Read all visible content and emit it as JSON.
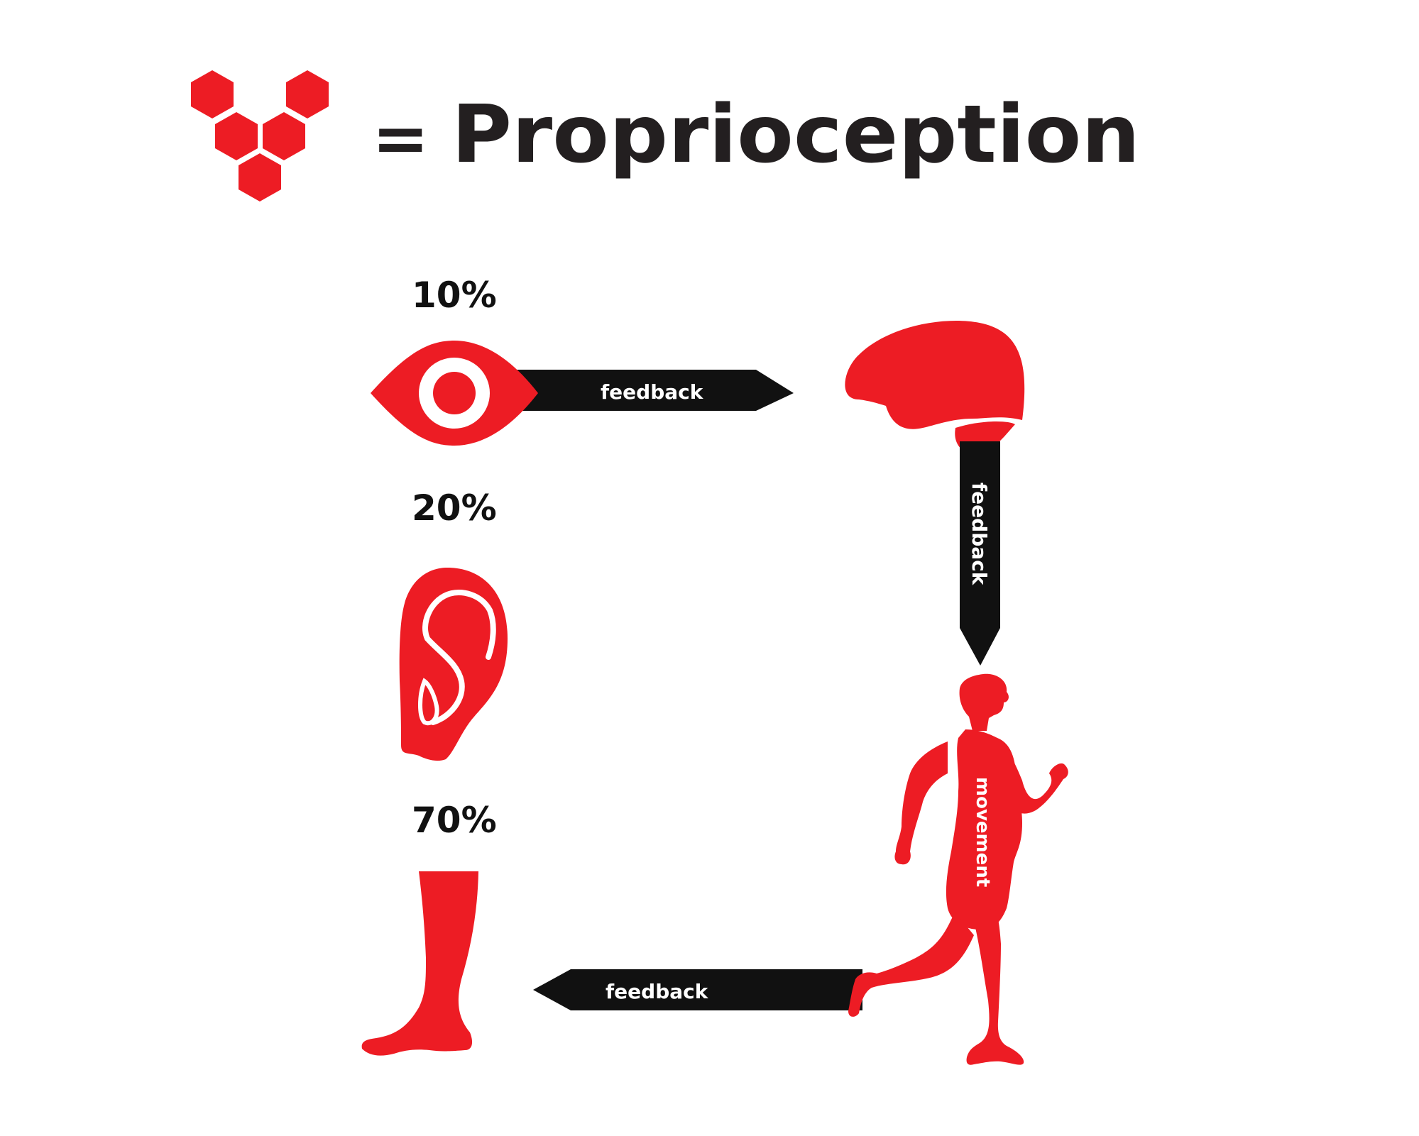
{
  "title": {
    "equals": "=",
    "text": "Proprioception"
  },
  "senses": [
    {
      "percent": "10%",
      "icon": "eye-icon"
    },
    {
      "percent": "20%",
      "icon": "ear-icon"
    },
    {
      "percent": "70%",
      "icon": "leg-icon"
    }
  ],
  "arrows": {
    "eye_to_brain": "feedback",
    "brain_to_body": "feedback",
    "body_to_leg": "feedback"
  },
  "body_label": "movement",
  "colors": {
    "accent": "#ED1C24",
    "arrow": "#111111",
    "text": "#231F20",
    "background": "#FFFFFF"
  }
}
